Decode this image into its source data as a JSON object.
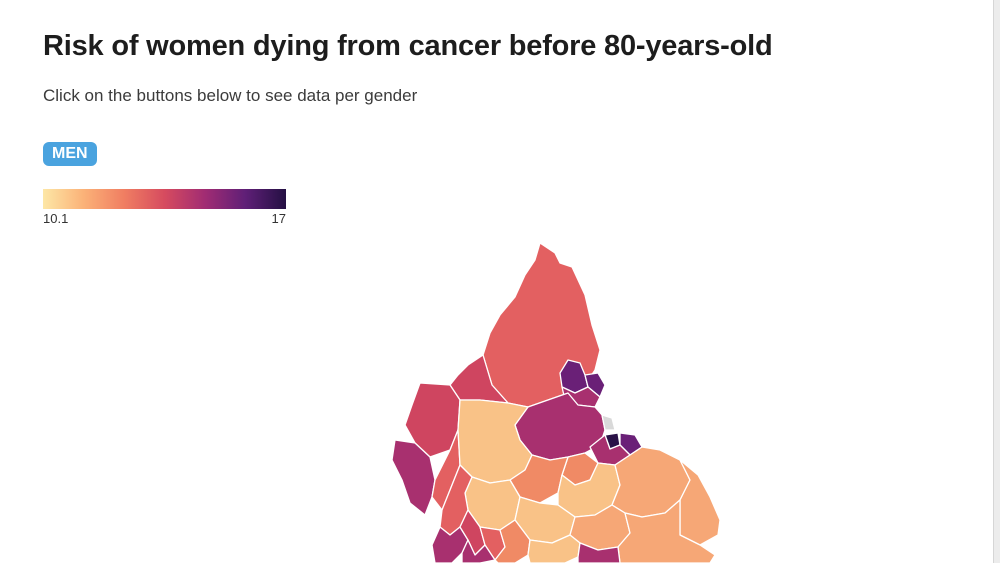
{
  "header": {
    "title": "Risk of women dying from cancer before 80-years-old",
    "subtitle": "Click on the buttons below to see data per gender"
  },
  "controls": {
    "gender_button_label": "MEN"
  },
  "legend": {
    "min_label": "10.1",
    "max_label": "17",
    "colors": [
      "#fde7a6",
      "#fbb278",
      "#f07e62",
      "#d64b5f",
      "#a12c73",
      "#5f1f77",
      "#241043"
    ]
  },
  "map": {
    "colors": {
      "very_low": "#f9c287",
      "low": "#f6a776",
      "mid_low": "#f08a65",
      "mid": "#e36061",
      "mid_high": "#cf4560",
      "high": "#a8306f",
      "very_high": "#6a2077",
      "extreme": "#2a1247",
      "no_data": "#d9d9d9"
    }
  }
}
